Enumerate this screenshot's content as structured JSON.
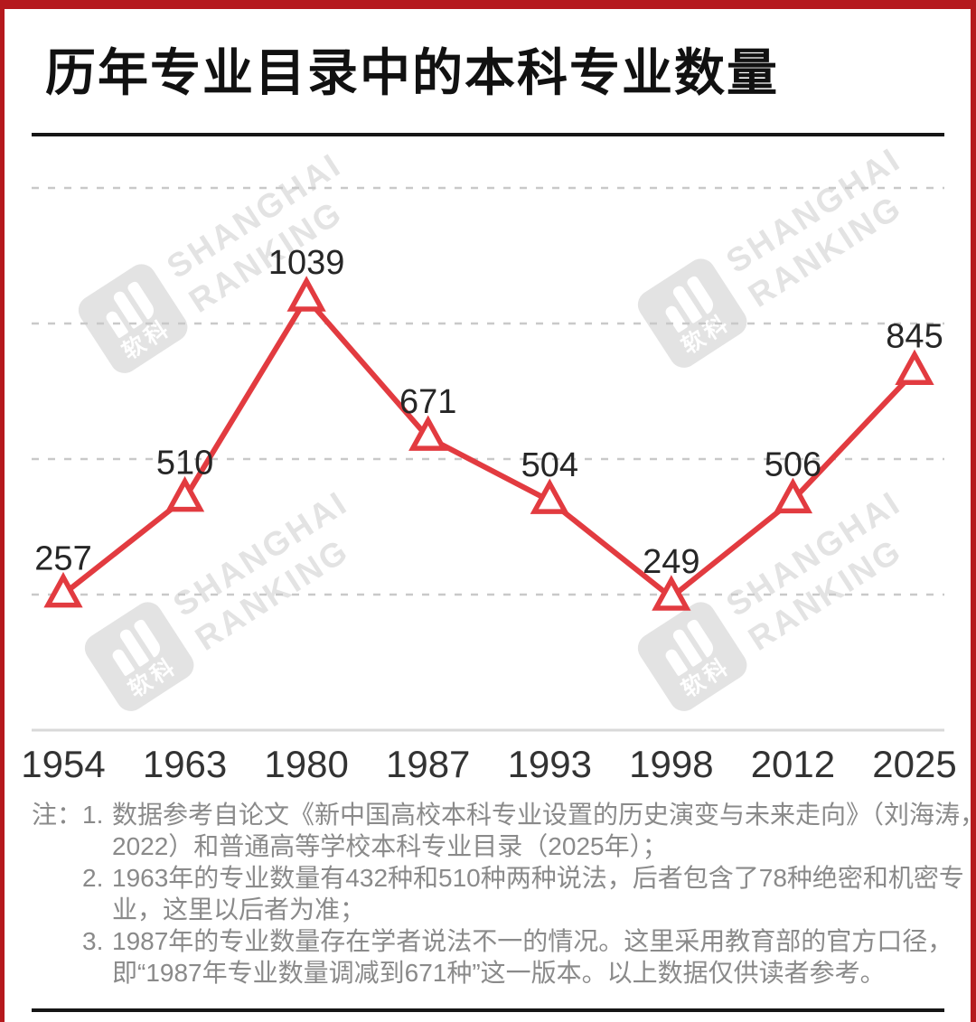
{
  "page": {
    "title": "历年专业目录中的本科专业数量"
  },
  "colors": {
    "line_red": "#e23b40",
    "frame_red": "#b5191d",
    "grid_gray": "#c9c9c9",
    "axis_gray": "#d9d9d9",
    "value_label": "#262626",
    "tick_label": "#333333",
    "note_gray": "#8a8a8a",
    "watermark_gray": "#e3e3e3",
    "divider_black": "#161616",
    "marker_fill": "#ffffff"
  },
  "watermark": {
    "logo_text": "软科",
    "lines": [
      "SHANGHAI",
      "RANKING"
    ]
  },
  "chart_data": {
    "type": "line",
    "title": "历年专业目录中的本科专业数量",
    "categories": [
      "1954",
      "1963",
      "1980",
      "1987",
      "1993",
      "1998",
      "2012",
      "2025"
    ],
    "series": [
      {
        "name": "本科专业数量",
        "values": [
          257,
          510,
          1039,
          671,
          504,
          249,
          506,
          845
        ]
      }
    ],
    "xlabel": "",
    "ylabel": "",
    "data_labels": true,
    "marker": "hollow-triangle-up",
    "legend": "none",
    "y_axis_tick_labels": "none",
    "grid": {
      "style": "horizontal-dashed",
      "count": 4,
      "solid_baseline": true
    }
  },
  "notes": {
    "prefix": "注：",
    "items": [
      "数据参考自论文《新中国高校本科专业设置的历史演变与未来走向》（刘海涛，2022）和普通高等学校本科专业目录（2025年）；",
      "1963年的专业数量有432种和510种两种说法，后者包含了78种绝密和机密专业，这里以后者为准；",
      "1987年的专业数量存在学者说法不一的情况。这里采用教育部的官方口径，即“1987年专业数量调减到671种”这一版本。以上数据仅供读者参考。"
    ]
  }
}
